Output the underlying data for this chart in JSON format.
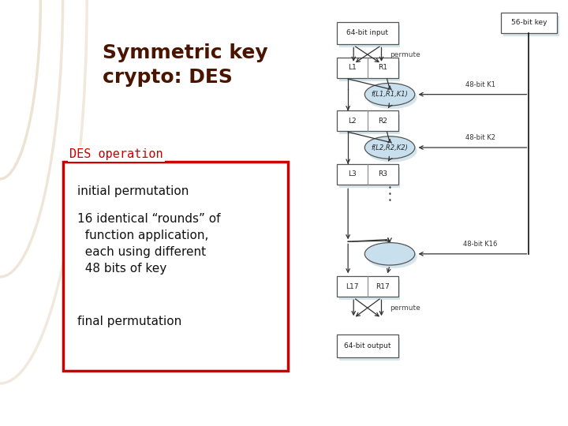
{
  "title": "Symmetric key\ncrypto: DES",
  "title_color": "#4A1500",
  "bg_left_color": "#E0C898",
  "bg_right_color": "#FFFFFF",
  "box_label": "DES operation",
  "box_label_color": "#CC0000",
  "box_border_color": "#CC0000",
  "bullet_color": "#111111",
  "bullets": [
    "initial permutation",
    "16 identical “rounds” of\n  function application,\n  each using different\n  48 bits of key",
    "final permutation"
  ],
  "permute_text": "permute",
  "font_size_title": 18,
  "font_size_box_label": 11,
  "font_size_bullet": 11,
  "font_size_diagram": 6.5,
  "shadow_color": "#B8D4E0",
  "ellipse_fill": "#C8E0EE",
  "node_border": "#555555",
  "arrow_color": "#333333",
  "key_color": "#111111"
}
